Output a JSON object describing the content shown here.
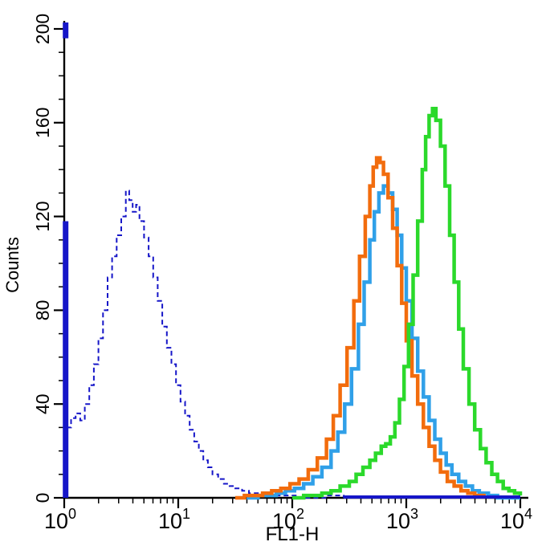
{
  "chart_data": {
    "type": "line",
    "subtype": "flow-cytometry-histogram-overlay",
    "title": "",
    "xlabel": "FL1-H",
    "ylabel": "Counts",
    "x_scale": "log10",
    "xlog_range": [
      0,
      4
    ],
    "ylim": [
      0,
      200
    ],
    "x_tick_labels": [
      "10^0",
      "10^1",
      "10^2",
      "10^3",
      "10^4"
    ],
    "y_ticks": [
      0,
      40,
      80,
      120,
      160,
      200
    ],
    "y_minor_step": 10,
    "grid": false,
    "legend": "none",
    "series": [
      {
        "name": "control-dashed-navy",
        "color": "#1616c8",
        "width": 2,
        "dashed": true,
        "points": [
          [
            0.02,
            30
          ],
          [
            0.06,
            34
          ],
          [
            0.1,
            36
          ],
          [
            0.14,
            33
          ],
          [
            0.18,
            40
          ],
          [
            0.22,
            48
          ],
          [
            0.26,
            57
          ],
          [
            0.3,
            68
          ],
          [
            0.34,
            80
          ],
          [
            0.38,
            94
          ],
          [
            0.42,
            103
          ],
          [
            0.46,
            112
          ],
          [
            0.5,
            120
          ],
          [
            0.54,
            131
          ],
          [
            0.57,
            127
          ],
          [
            0.6,
            122
          ],
          [
            0.63,
            125
          ],
          [
            0.66,
            118
          ],
          [
            0.7,
            111
          ],
          [
            0.74,
            103
          ],
          [
            0.78,
            94
          ],
          [
            0.82,
            84
          ],
          [
            0.86,
            73
          ],
          [
            0.9,
            64
          ],
          [
            0.94,
            57
          ],
          [
            0.98,
            48
          ],
          [
            1.02,
            41
          ],
          [
            1.06,
            35
          ],
          [
            1.1,
            29
          ],
          [
            1.14,
            24
          ],
          [
            1.18,
            20
          ],
          [
            1.22,
            16
          ],
          [
            1.26,
            13
          ],
          [
            1.3,
            10
          ],
          [
            1.35,
            8
          ],
          [
            1.4,
            6
          ],
          [
            1.45,
            5
          ],
          [
            1.5,
            4
          ],
          [
            1.56,
            3
          ],
          [
            1.62,
            2
          ],
          [
            1.7,
            2
          ],
          [
            1.8,
            1
          ],
          [
            1.92,
            1
          ],
          [
            2.05,
            0
          ],
          [
            2.3,
            1
          ],
          [
            2.45,
            0
          ]
        ]
      },
      {
        "name": "sample-blue",
        "color": "#30a0e8",
        "width": 4.5,
        "dashed": false,
        "points": [
          [
            1.6,
            0
          ],
          [
            1.7,
            1
          ],
          [
            1.78,
            1
          ],
          [
            1.86,
            2
          ],
          [
            1.94,
            3
          ],
          [
            2.02,
            4
          ],
          [
            2.1,
            6
          ],
          [
            2.18,
            9
          ],
          [
            2.26,
            13
          ],
          [
            2.34,
            20
          ],
          [
            2.4,
            28
          ],
          [
            2.46,
            40
          ],
          [
            2.52,
            55
          ],
          [
            2.58,
            74
          ],
          [
            2.63,
            92
          ],
          [
            2.68,
            110
          ],
          [
            2.72,
            122
          ],
          [
            2.76,
            130
          ],
          [
            2.8,
            133
          ],
          [
            2.84,
            130
          ],
          [
            2.88,
            123
          ],
          [
            2.92,
            112
          ],
          [
            2.96,
            98
          ],
          [
            3.0,
            84
          ],
          [
            3.05,
            68
          ],
          [
            3.1,
            54
          ],
          [
            3.15,
            43
          ],
          [
            3.2,
            33
          ],
          [
            3.25,
            25
          ],
          [
            3.3,
            19
          ],
          [
            3.35,
            14
          ],
          [
            3.4,
            10
          ],
          [
            3.46,
            7
          ],
          [
            3.52,
            5
          ],
          [
            3.58,
            3
          ],
          [
            3.64,
            2
          ],
          [
            3.72,
            1
          ],
          [
            3.8,
            0
          ],
          [
            4.0,
            0
          ]
        ]
      },
      {
        "name": "sample-orange",
        "color": "#f26c0d",
        "width": 4.5,
        "dashed": false,
        "points": [
          [
            1.5,
            0
          ],
          [
            1.58,
            1
          ],
          [
            1.66,
            1
          ],
          [
            1.74,
            2
          ],
          [
            1.82,
            3
          ],
          [
            1.9,
            4
          ],
          [
            1.98,
            6
          ],
          [
            2.06,
            8
          ],
          [
            2.14,
            12
          ],
          [
            2.22,
            17
          ],
          [
            2.3,
            25
          ],
          [
            2.36,
            35
          ],
          [
            2.42,
            48
          ],
          [
            2.48,
            64
          ],
          [
            2.54,
            84
          ],
          [
            2.59,
            103
          ],
          [
            2.64,
            120
          ],
          [
            2.68,
            133
          ],
          [
            2.71,
            141
          ],
          [
            2.74,
            145
          ],
          [
            2.77,
            143
          ],
          [
            2.8,
            138
          ],
          [
            2.84,
            128
          ],
          [
            2.88,
            115
          ],
          [
            2.92,
            99
          ],
          [
            2.96,
            83
          ],
          [
            3.0,
            67
          ],
          [
            3.05,
            52
          ],
          [
            3.1,
            40
          ],
          [
            3.15,
            30
          ],
          [
            3.2,
            22
          ],
          [
            3.25,
            16
          ],
          [
            3.3,
            11
          ],
          [
            3.36,
            7
          ],
          [
            3.42,
            5
          ],
          [
            3.48,
            3
          ],
          [
            3.54,
            2
          ],
          [
            3.6,
            1
          ],
          [
            3.68,
            0
          ]
        ]
      },
      {
        "name": "sample-green",
        "color": "#2bd92b",
        "width": 4.5,
        "dashed": false,
        "points": [
          [
            2.0,
            0
          ],
          [
            2.1,
            1
          ],
          [
            2.18,
            1
          ],
          [
            2.26,
            2
          ],
          [
            2.34,
            3
          ],
          [
            2.42,
            5
          ],
          [
            2.5,
            7
          ],
          [
            2.56,
            10
          ],
          [
            2.62,
            13
          ],
          [
            2.68,
            16
          ],
          [
            2.73,
            19
          ],
          [
            2.78,
            22
          ],
          [
            2.82,
            23
          ],
          [
            2.86,
            26
          ],
          [
            2.9,
            32
          ],
          [
            2.94,
            42
          ],
          [
            2.98,
            56
          ],
          [
            3.02,
            74
          ],
          [
            3.06,
            95
          ],
          [
            3.1,
            118
          ],
          [
            3.14,
            140
          ],
          [
            3.17,
            154
          ],
          [
            3.2,
            163
          ],
          [
            3.23,
            166
          ],
          [
            3.26,
            161
          ],
          [
            3.3,
            150
          ],
          [
            3.34,
            133
          ],
          [
            3.38,
            112
          ],
          [
            3.42,
            92
          ],
          [
            3.46,
            72
          ],
          [
            3.5,
            55
          ],
          [
            3.55,
            40
          ],
          [
            3.6,
            29
          ],
          [
            3.65,
            21
          ],
          [
            3.7,
            15
          ],
          [
            3.75,
            10
          ],
          [
            3.8,
            7
          ],
          [
            3.85,
            4
          ],
          [
            3.9,
            3
          ],
          [
            3.95,
            2
          ],
          [
            4.0,
            1
          ]
        ]
      }
    ],
    "extras": {
      "left_spike": {
        "log_x": 0.012,
        "height": 118,
        "color": "#1616c8",
        "width": 7
      },
      "top_spike": {
        "log_x": 0.012,
        "count_from": 196,
        "count_to": 204,
        "color": "#1616c8",
        "width": 7
      },
      "baseline": {
        "from_log_x": 2.45,
        "to_log_x": 4.0,
        "color": "#1616c8",
        "width": 4
      }
    }
  }
}
